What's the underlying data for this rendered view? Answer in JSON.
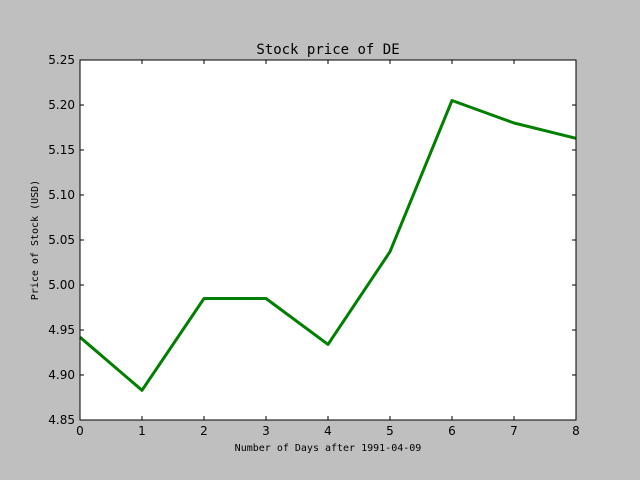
{
  "chart_data": {
    "type": "line",
    "title": "Stock price of DE",
    "xlabel": "Number of Days after 1991-04-09",
    "ylabel": "Price of Stock (USD)",
    "xlim": [
      0,
      8
    ],
    "ylim": [
      4.85,
      5.25
    ],
    "x_ticks": [
      "0",
      "1",
      "2",
      "3",
      "4",
      "5",
      "6",
      "7",
      "8"
    ],
    "y_ticks": [
      "4.85",
      "4.90",
      "4.95",
      "5.00",
      "5.05",
      "5.10",
      "5.15",
      "5.20",
      "5.25"
    ],
    "grid": false,
    "series": [
      {
        "color": "#007f00",
        "x": [
          0,
          1,
          2,
          3,
          4,
          5,
          6,
          7,
          8
        ],
        "values": [
          4.942,
          4.883,
          4.985,
          4.985,
          4.934,
          5.037,
          5.205,
          5.18,
          5.163
        ]
      }
    ]
  },
  "colors": {
    "figure_background": "#bfbfbf",
    "plot_background": "#ffffff",
    "line": "#007f00"
  }
}
